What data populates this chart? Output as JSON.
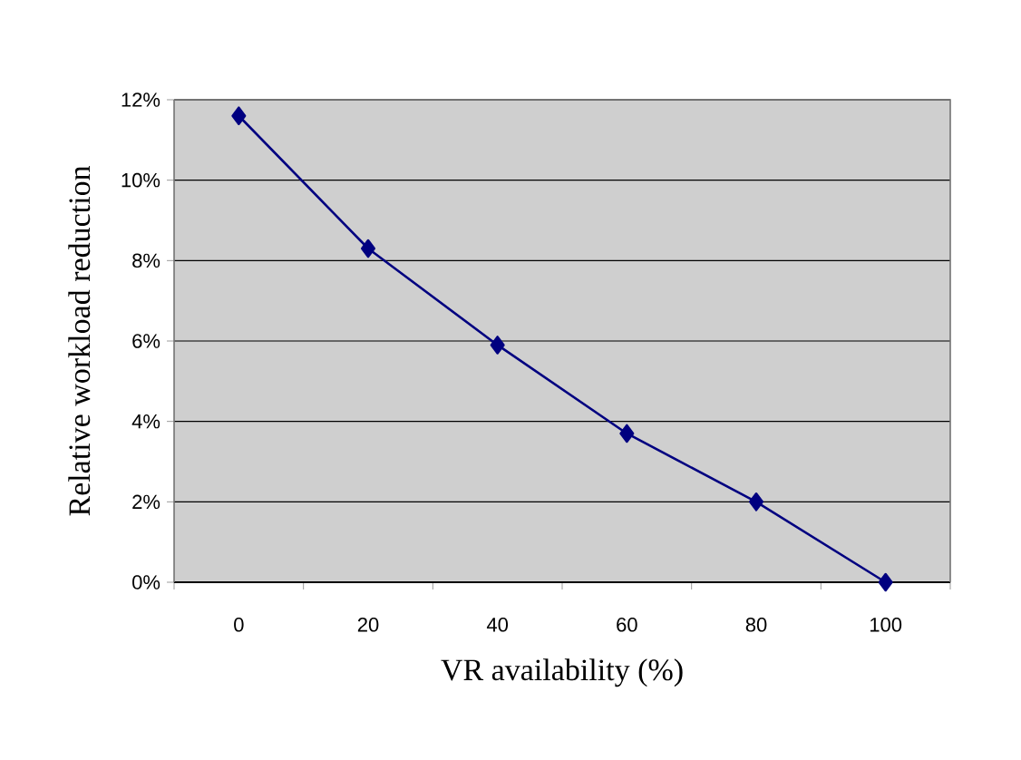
{
  "chart_data": {
    "type": "line",
    "xlabel": "VR availability (%)",
    "ylabel": "Relative workload reduction",
    "categories": [
      "0",
      "20",
      "40",
      "60",
      "80",
      "100"
    ],
    "series": [
      {
        "color": "#000080",
        "values": [
          11.6,
          8.3,
          5.9,
          3.7,
          2.0,
          0
        ]
      }
    ],
    "ylim": [
      0,
      12
    ],
    "yticks": [
      {
        "value": 0,
        "label": "0%"
      },
      {
        "value": 2,
        "label": "2%"
      },
      {
        "value": 4,
        "label": "4%"
      },
      {
        "value": 6,
        "label": "6%"
      },
      {
        "value": 8,
        "label": "8%"
      },
      {
        "value": 10,
        "label": "10%"
      },
      {
        "value": 12,
        "label": "12%"
      }
    ],
    "grid": "y",
    "marker": "diamond",
    "line_style": "solid"
  }
}
